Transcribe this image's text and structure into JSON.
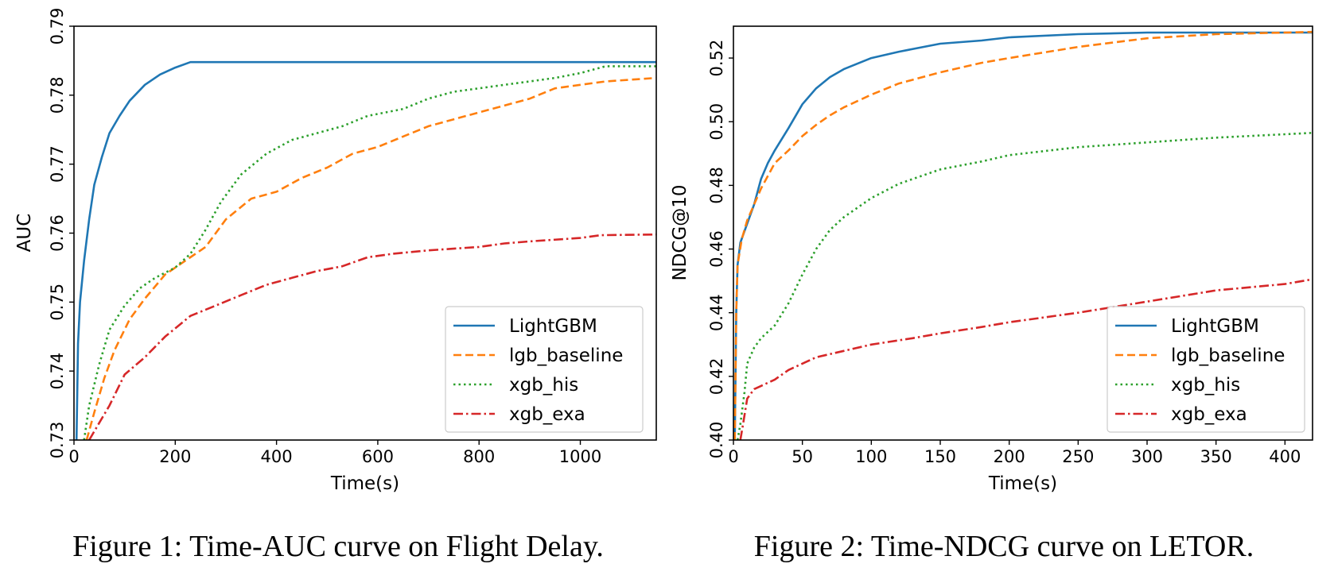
{
  "figures": [
    {
      "caption": "Figure 1: Time-AUC curve on Flight Delay."
    },
    {
      "caption": "Figure 2: Time-NDCG curve on LETOR."
    }
  ],
  "chart_data": [
    {
      "type": "line",
      "title": "",
      "xlabel": "Time(s)",
      "ylabel": "AUC",
      "xlim": [
        0,
        1150
      ],
      "ylim": [
        0.73,
        0.79
      ],
      "xticks": [
        0,
        200,
        400,
        600,
        800,
        1000
      ],
      "xtick_labels": [
        "0",
        "200",
        "400",
        "600",
        "800",
        "1000"
      ],
      "yticks": [
        0.73,
        0.74,
        0.75,
        0.76,
        0.77,
        0.78,
        0.79
      ],
      "ytick_labels": [
        "0.73",
        "0.74",
        "0.75",
        "0.76",
        "0.77",
        "0.78",
        "0.79"
      ],
      "legend_position": "lower-right",
      "grid": false,
      "series": [
        {
          "name": "LightGBM",
          "color": "#1f77b4",
          "style": "solid",
          "points": [
            [
              5,
              0.73
            ],
            [
              8,
              0.744
            ],
            [
              12,
              0.75
            ],
            [
              20,
              0.756
            ],
            [
              30,
              0.762
            ],
            [
              40,
              0.767
            ],
            [
              55,
              0.771
            ],
            [
              70,
              0.7745
            ],
            [
              90,
              0.777
            ],
            [
              110,
              0.7792
            ],
            [
              140,
              0.7815
            ],
            [
              170,
              0.783
            ],
            [
              200,
              0.784
            ],
            [
              230,
              0.7848
            ],
            [
              1150,
              0.7848
            ]
          ]
        },
        {
          "name": "lgb_baseline",
          "color": "#ff7f0e",
          "style": "dashed",
          "points": [
            [
              25,
              0.73
            ],
            [
              40,
              0.734
            ],
            [
              60,
              0.739
            ],
            [
              80,
              0.743
            ],
            [
              110,
              0.7475
            ],
            [
              140,
              0.7505
            ],
            [
              180,
              0.754
            ],
            [
              220,
              0.756
            ],
            [
              260,
              0.758
            ],
            [
              300,
              0.762
            ],
            [
              350,
              0.765
            ],
            [
              400,
              0.766
            ],
            [
              450,
              0.768
            ],
            [
              500,
              0.7695
            ],
            [
              550,
              0.7715
            ],
            [
              600,
              0.7725
            ],
            [
              650,
              0.774
            ],
            [
              700,
              0.7755
            ],
            [
              750,
              0.7765
            ],
            [
              800,
              0.7775
            ],
            [
              850,
              0.7785
            ],
            [
              900,
              0.7795
            ],
            [
              950,
              0.781
            ],
            [
              1000,
              0.7815
            ],
            [
              1050,
              0.782
            ],
            [
              1150,
              0.7825
            ]
          ]
        },
        {
          "name": "xgb_his",
          "color": "#2ca02c",
          "style": "dotted",
          "points": [
            [
              20,
              0.73
            ],
            [
              30,
              0.735
            ],
            [
              50,
              0.741
            ],
            [
              70,
              0.746
            ],
            [
              100,
              0.7495
            ],
            [
              130,
              0.752
            ],
            [
              160,
              0.7535
            ],
            [
              200,
              0.755
            ],
            [
              230,
              0.757
            ],
            [
              260,
              0.7605
            ],
            [
              290,
              0.7645
            ],
            [
              330,
              0.7685
            ],
            [
              380,
              0.7715
            ],
            [
              430,
              0.7735
            ],
            [
              480,
              0.7745
            ],
            [
              530,
              0.7755
            ],
            [
              580,
              0.777
            ],
            [
              650,
              0.778
            ],
            [
              700,
              0.7795
            ],
            [
              750,
              0.7805
            ],
            [
              800,
              0.781
            ],
            [
              850,
              0.7815
            ],
            [
              900,
              0.782
            ],
            [
              950,
              0.7825
            ],
            [
              1000,
              0.7832
            ],
            [
              1050,
              0.7842
            ],
            [
              1150,
              0.7842
            ]
          ]
        },
        {
          "name": "xgb_exa",
          "color": "#d62728",
          "style": "dashdot",
          "points": [
            [
              30,
              0.73
            ],
            [
              50,
              0.7325
            ],
            [
              70,
              0.735
            ],
            [
              100,
              0.7395
            ],
            [
              140,
              0.742
            ],
            [
              180,
              0.745
            ],
            [
              230,
              0.748
            ],
            [
              280,
              0.7495
            ],
            [
              330,
              0.751
            ],
            [
              380,
              0.7525
            ],
            [
              430,
              0.7535
            ],
            [
              480,
              0.7545
            ],
            [
              530,
              0.7552
            ],
            [
              580,
              0.7565
            ],
            [
              630,
              0.757
            ],
            [
              700,
              0.7575
            ],
            [
              800,
              0.758
            ],
            [
              850,
              0.7585
            ],
            [
              900,
              0.7588
            ],
            [
              1000,
              0.7593
            ],
            [
              1040,
              0.7597
            ],
            [
              1150,
              0.7598
            ]
          ]
        }
      ]
    },
    {
      "type": "line",
      "title": "",
      "xlabel": "Time(s)",
      "ylabel": "NDCG@10",
      "xlim": [
        0,
        420
      ],
      "ylim": [
        0.4,
        0.53
      ],
      "xticks": [
        0,
        50,
        100,
        150,
        200,
        250,
        300,
        350,
        400
      ],
      "xtick_labels": [
        "0",
        "50",
        "100",
        "150",
        "200",
        "250",
        "300",
        "350",
        "400"
      ],
      "yticks": [
        0.4,
        0.42,
        0.44,
        0.46,
        0.48,
        0.5,
        0.52
      ],
      "ytick_labels": [
        "0.40",
        "0.42",
        "0.44",
        "0.46",
        "0.48",
        "0.50",
        "0.52"
      ],
      "legend_position": "lower-right",
      "grid": false,
      "series": [
        {
          "name": "LightGBM",
          "color": "#1f77b4",
          "style": "solid",
          "points": [
            [
              1,
              0.4
            ],
            [
              2,
              0.44
            ],
            [
              3,
              0.455
            ],
            [
              5,
              0.462
            ],
            [
              10,
              0.468
            ],
            [
              15,
              0.474
            ],
            [
              20,
              0.482
            ],
            [
              25,
              0.487
            ],
            [
              30,
              0.491
            ],
            [
              40,
              0.498
            ],
            [
              50,
              0.5055
            ],
            [
              60,
              0.5105
            ],
            [
              70,
              0.514
            ],
            [
              80,
              0.5165
            ],
            [
              100,
              0.52
            ],
            [
              120,
              0.522
            ],
            [
              150,
              0.5245
            ],
            [
              180,
              0.5255
            ],
            [
              200,
              0.5265
            ],
            [
              250,
              0.5275
            ],
            [
              300,
              0.528
            ],
            [
              420,
              0.528
            ]
          ]
        },
        {
          "name": "lgb_baseline",
          "color": "#ff7f0e",
          "style": "dashed",
          "points": [
            [
              1,
              0.4
            ],
            [
              2,
              0.44
            ],
            [
              3,
              0.455
            ],
            [
              6,
              0.463
            ],
            [
              10,
              0.469
            ],
            [
              15,
              0.474
            ],
            [
              20,
              0.479
            ],
            [
              30,
              0.487
            ],
            [
              40,
              0.491
            ],
            [
              50,
              0.4955
            ],
            [
              60,
              0.499
            ],
            [
              70,
              0.502
            ],
            [
              80,
              0.5045
            ],
            [
              100,
              0.5085
            ],
            [
              120,
              0.512
            ],
            [
              150,
              0.5155
            ],
            [
              180,
              0.5185
            ],
            [
              200,
              0.52
            ],
            [
              250,
              0.5235
            ],
            [
              300,
              0.5262
            ],
            [
              350,
              0.5275
            ],
            [
              420,
              0.5282
            ]
          ]
        },
        {
          "name": "xgb_his",
          "color": "#2ca02c",
          "style": "dotted",
          "points": [
            [
              3,
              0.4
            ],
            [
              5,
              0.405
            ],
            [
              8,
              0.415
            ],
            [
              10,
              0.424
            ],
            [
              15,
              0.429
            ],
            [
              20,
              0.432
            ],
            [
              30,
              0.436
            ],
            [
              40,
              0.443
            ],
            [
              50,
              0.452
            ],
            [
              60,
              0.46
            ],
            [
              70,
              0.466
            ],
            [
              80,
              0.47
            ],
            [
              100,
              0.476
            ],
            [
              120,
              0.4805
            ],
            [
              150,
              0.485
            ],
            [
              180,
              0.4875
            ],
            [
              200,
              0.4895
            ],
            [
              250,
              0.492
            ],
            [
              300,
              0.4935
            ],
            [
              350,
              0.495
            ],
            [
              420,
              0.4965
            ]
          ]
        },
        {
          "name": "xgb_exa",
          "color": "#d62728",
          "style": "dashdot",
          "points": [
            [
              5,
              0.4
            ],
            [
              7,
              0.405
            ],
            [
              10,
              0.413
            ],
            [
              15,
              0.416
            ],
            [
              20,
              0.417
            ],
            [
              30,
              0.419
            ],
            [
              40,
              0.422
            ],
            [
              50,
              0.424
            ],
            [
              60,
              0.426
            ],
            [
              80,
              0.428
            ],
            [
              100,
              0.43
            ],
            [
              130,
              0.432
            ],
            [
              150,
              0.4335
            ],
            [
              180,
              0.4355
            ],
            [
              200,
              0.437
            ],
            [
              250,
              0.44
            ],
            [
              300,
              0.4435
            ],
            [
              350,
              0.447
            ],
            [
              400,
              0.449
            ],
            [
              420,
              0.4505
            ]
          ]
        }
      ]
    }
  ]
}
